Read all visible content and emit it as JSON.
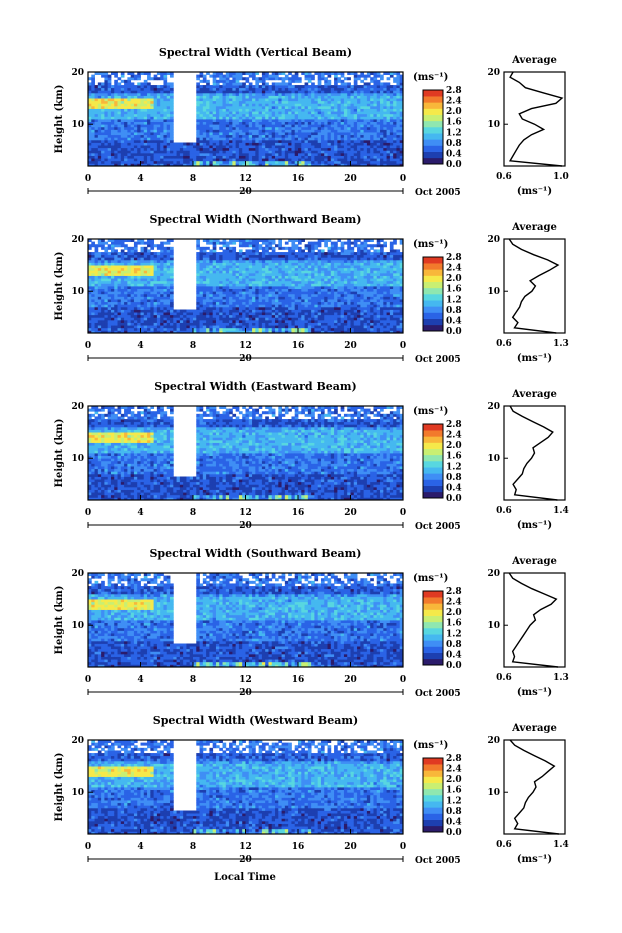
{
  "colors": {
    "colormap": [
      "#2b1b6b",
      "#1d3fb0",
      "#2a63e6",
      "#3f8ef5",
      "#45b8f0",
      "#58d7e0",
      "#8fe7b0",
      "#c9ef72",
      "#f5e94a",
      "#f8b73a",
      "#f27a2c",
      "#e03a22"
    ],
    "frame": "#000000",
    "background": "#ffffff"
  },
  "footer": {
    "xlabel": "Local Time"
  },
  "chart_data": [
    {
      "type": "heatmap",
      "title": "Spectral Width (Vertical Beam)",
      "ylabel": "Height (km)",
      "xlim": [
        0,
        24
      ],
      "ylim": [
        2,
        20
      ],
      "xticks": [
        "0",
        "4",
        "8",
        "12",
        "16",
        "20",
        "0"
      ],
      "yticks": [
        "10",
        "20"
      ],
      "date_marker": "20",
      "date_label": "Oct 2005",
      "colorbar": {
        "unit": "(ms⁻¹)",
        "ticks": [
          "2.8",
          "2.4",
          "2.0",
          "1.6",
          "1.2",
          "0.8",
          "0.4",
          "0.0"
        ],
        "range": [
          0.0,
          2.8
        ]
      },
      "avg_profile": {
        "title": "Average",
        "xlim": [
          0.6,
          1.0
        ],
        "xticks": [
          "0.6",
          "1.0"
        ],
        "xlabel": "(ms⁻¹)",
        "yticks": [
          "10",
          "20"
        ],
        "height": [
          2,
          3,
          4,
          5,
          6,
          7,
          8,
          9,
          10,
          11,
          12,
          13,
          14,
          15,
          16,
          17,
          18,
          19,
          20
        ],
        "value": [
          0.98,
          0.64,
          0.66,
          0.68,
          0.7,
          0.73,
          0.78,
          0.86,
          0.8,
          0.72,
          0.7,
          0.78,
          0.94,
          0.98,
          0.86,
          0.74,
          0.7,
          0.64,
          0.66
        ]
      }
    },
    {
      "type": "heatmap",
      "title": "Spectral Width (Northward Beam)",
      "ylabel": "Height (km)",
      "xlim": [
        0,
        24
      ],
      "ylim": [
        2,
        20
      ],
      "xticks": [
        "0",
        "4",
        "8",
        "12",
        "16",
        "20",
        "0"
      ],
      "yticks": [
        "10",
        "20"
      ],
      "date_marker": "20",
      "date_label": "Oct 2005",
      "colorbar": {
        "unit": "(ms⁻¹)",
        "ticks": [
          "2.8",
          "2.4",
          "2.0",
          "1.6",
          "1.2",
          "0.8",
          "0.4",
          "0.0"
        ],
        "range": [
          0.0,
          2.8
        ]
      },
      "avg_profile": {
        "title": "Average",
        "xlim": [
          0.6,
          1.3
        ],
        "xticks": [
          "0.6",
          "1.3"
        ],
        "xlabel": "(ms⁻¹)",
        "yticks": [
          "10",
          "20"
        ],
        "height": [
          2,
          3,
          4,
          5,
          6,
          7,
          8,
          9,
          10,
          11,
          12,
          13,
          14,
          15,
          16,
          17,
          18,
          19,
          20
        ],
        "value": [
          1.2,
          0.72,
          0.76,
          0.7,
          0.74,
          0.78,
          0.8,
          0.84,
          0.92,
          0.96,
          0.9,
          1.0,
          1.12,
          1.22,
          1.1,
          0.94,
          0.8,
          0.7,
          0.66
        ]
      }
    },
    {
      "type": "heatmap",
      "title": "Spectral Width (Eastward Beam)",
      "ylabel": "Height (km)",
      "xlim": [
        0,
        24
      ],
      "ylim": [
        2,
        20
      ],
      "xticks": [
        "0",
        "4",
        "8",
        "12",
        "16",
        "20",
        "0"
      ],
      "yticks": [
        "10",
        "20"
      ],
      "date_marker": "20",
      "date_label": "Oct 2005",
      "colorbar": {
        "unit": "(ms⁻¹)",
        "ticks": [
          "2.8",
          "2.4",
          "2.0",
          "1.6",
          "1.2",
          "0.8",
          "0.4",
          "0.0"
        ],
        "range": [
          0.0,
          2.8
        ]
      },
      "avg_profile": {
        "title": "Average",
        "xlim": [
          0.6,
          1.4
        ],
        "xticks": [
          "0.6",
          "1.4"
        ],
        "xlabel": "(ms⁻¹)",
        "yticks": [
          "10",
          "20"
        ],
        "height": [
          2,
          3,
          4,
          5,
          6,
          7,
          8,
          9,
          10,
          11,
          12,
          13,
          14,
          15,
          16,
          17,
          18,
          19,
          20
        ],
        "value": [
          1.3,
          0.74,
          0.76,
          0.72,
          0.78,
          0.84,
          0.86,
          0.9,
          0.96,
          1.0,
          0.98,
          1.08,
          1.18,
          1.24,
          1.12,
          0.98,
          0.84,
          0.72,
          0.68
        ]
      }
    },
    {
      "type": "heatmap",
      "title": "Spectral Width (Southward Beam)",
      "ylabel": "Height (km)",
      "xlim": [
        0,
        24
      ],
      "ylim": [
        2,
        20
      ],
      "xticks": [
        "0",
        "4",
        "8",
        "12",
        "16",
        "20",
        "0"
      ],
      "yticks": [
        "10",
        "20"
      ],
      "date_marker": "20",
      "date_label": "Oct 2005",
      "colorbar": {
        "unit": "(ms⁻¹)",
        "ticks": [
          "2.8",
          "2.4",
          "2.0",
          "1.6",
          "1.2",
          "0.8",
          "0.4",
          "0.0"
        ],
        "range": [
          0.0,
          2.8
        ]
      },
      "avg_profile": {
        "title": "Average",
        "xlim": [
          0.6,
          1.3
        ],
        "xticks": [
          "0.6",
          "1.3"
        ],
        "xlabel": "(ms⁻¹)",
        "yticks": [
          "10",
          "20"
        ],
        "height": [
          2,
          3,
          4,
          5,
          6,
          7,
          8,
          9,
          10,
          11,
          12,
          13,
          14,
          15,
          16,
          17,
          18,
          19,
          20
        ],
        "value": [
          1.22,
          0.7,
          0.72,
          0.7,
          0.74,
          0.78,
          0.82,
          0.86,
          0.9,
          0.96,
          0.94,
          1.02,
          1.14,
          1.2,
          1.06,
          0.92,
          0.8,
          0.7,
          0.66
        ]
      }
    },
    {
      "type": "heatmap",
      "title": "Spectral Width (Westward Beam)",
      "ylabel": "Height (km)",
      "xlim": [
        0,
        24
      ],
      "ylim": [
        2,
        20
      ],
      "xticks": [
        "0",
        "4",
        "8",
        "12",
        "16",
        "20",
        "0"
      ],
      "yticks": [
        "10",
        "20"
      ],
      "date_marker": "20",
      "date_label": "Oct 2005",
      "colorbar": {
        "unit": "(ms⁻¹)",
        "ticks": [
          "2.8",
          "2.4",
          "2.0",
          "1.6",
          "1.2",
          "0.8",
          "0.4",
          "0.0"
        ],
        "range": [
          0.0,
          2.8
        ]
      },
      "avg_profile": {
        "title": "Average",
        "xlim": [
          0.6,
          1.4
        ],
        "xticks": [
          "0.6",
          "1.4"
        ],
        "xlabel": "(ms⁻¹)",
        "yticks": [
          "10",
          "20"
        ],
        "height": [
          2,
          3,
          4,
          5,
          6,
          7,
          8,
          9,
          10,
          11,
          12,
          13,
          14,
          15,
          16,
          17,
          18,
          19,
          20
        ],
        "value": [
          1.32,
          0.74,
          0.78,
          0.74,
          0.8,
          0.86,
          0.88,
          0.92,
          0.98,
          1.02,
          1.0,
          1.1,
          1.18,
          1.26,
          1.14,
          1.0,
          0.86,
          0.74,
          0.68
        ]
      }
    }
  ]
}
